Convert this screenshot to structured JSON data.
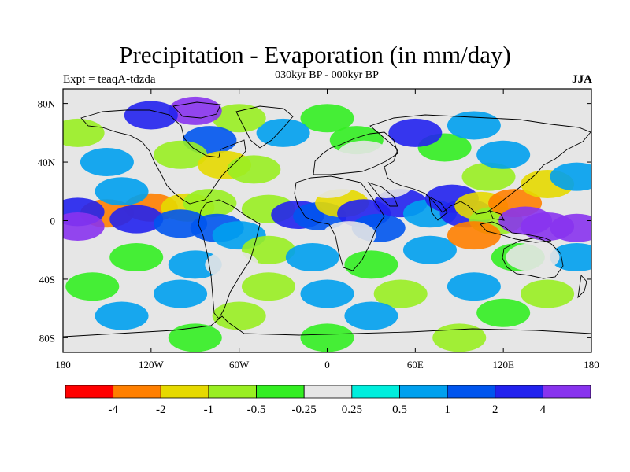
{
  "title": "Precipitation - Evaporation (in mm/day)",
  "subtitle": "030kyr BP - 000kyr BP",
  "left_label": "Expt = teaqA-tdzda",
  "right_label": "JJA",
  "colors": {
    "ocean_background": "#e6e6e6",
    "coastline": "#000000",
    "bins": [
      "#ff0000",
      "#ff7f00",
      "#e6d900",
      "#99ee22",
      "#33ee22",
      "#e6e6e6",
      "#00eedd",
      "#00a0ee",
      "#0055ee",
      "#2222ee",
      "#8833ee"
    ]
  },
  "map": {
    "projection": "cylindrical-equidistant",
    "lon_range": [
      -180,
      180
    ],
    "lat_range": [
      -90,
      90
    ],
    "lon_ticks": [
      {
        "value": -180,
        "label": "180"
      },
      {
        "value": -120,
        "label": "120W"
      },
      {
        "value": -60,
        "label": "60W"
      },
      {
        "value": 0,
        "label": "0"
      },
      {
        "value": 60,
        "label": "60E"
      },
      {
        "value": 120,
        "label": "120E"
      },
      {
        "value": 180,
        "label": "180"
      }
    ],
    "lat_ticks": [
      {
        "value": 80,
        "label": "80N"
      },
      {
        "value": 40,
        "label": "40N"
      },
      {
        "value": 0,
        "label": "0"
      },
      {
        "value": -40,
        "label": "40S"
      },
      {
        "value": -80,
        "label": "80S"
      }
    ]
  },
  "colorbar": {
    "levels": [
      -4,
      -2,
      -1,
      -0.5,
      -0.25,
      0.25,
      0.5,
      1,
      2,
      4
    ],
    "labels": [
      "-4",
      "-2",
      "-1",
      "-0.5",
      "-0.25",
      "0.25",
      "0.5",
      "1",
      "2",
      "4"
    ]
  },
  "fields": [
    {
      "lon": -150,
      "lat": 5,
      "value": -4
    },
    {
      "lon": -120,
      "lat": 9,
      "value": -4
    },
    {
      "lon": -95,
      "lat": 9,
      "value": -2
    },
    {
      "lon": -80,
      "lat": 12,
      "value": -1
    },
    {
      "lon": -170,
      "lat": 6,
      "value": 2
    },
    {
      "lon": -170,
      "lat": -4,
      "value": 4
    },
    {
      "lon": -130,
      "lat": 1,
      "value": 2
    },
    {
      "lon": -100,
      "lat": -2,
      "value": 1
    },
    {
      "lon": -75,
      "lat": -5,
      "value": 1
    },
    {
      "lon": -60,
      "lat": -10,
      "value": 0.5
    },
    {
      "lon": -40,
      "lat": 8,
      "value": -1
    },
    {
      "lon": -20,
      "lat": 4,
      "value": 2
    },
    {
      "lon": -5,
      "lat": 3,
      "value": 1
    },
    {
      "lon": 10,
      "lat": 12,
      "value": -2
    },
    {
      "lon": 25,
      "lat": 5,
      "value": 2
    },
    {
      "lon": 35,
      "lat": -5,
      "value": 1
    },
    {
      "lon": 50,
      "lat": 12,
      "value": 2
    },
    {
      "lon": 70,
      "lat": 5,
      "value": 0.5
    },
    {
      "lon": 85,
      "lat": 15,
      "value": 2
    },
    {
      "lon": 95,
      "lat": 5,
      "value": 2
    },
    {
      "lon": 105,
      "lat": 10,
      "value": -2
    },
    {
      "lon": 115,
      "lat": 0,
      "value": -1
    },
    {
      "lon": 128,
      "lat": 12,
      "value": -4
    },
    {
      "lon": 135,
      "lat": 0,
      "value": 4
    },
    {
      "lon": 150,
      "lat": -4,
      "value": 4
    },
    {
      "lon": 170,
      "lat": -5,
      "value": 4
    },
    {
      "lon": 150,
      "lat": 25,
      "value": -2
    },
    {
      "lon": 170,
      "lat": 30,
      "value": 0.5
    },
    {
      "lon": 110,
      "lat": 30,
      "value": -1
    },
    {
      "lon": 120,
      "lat": 45,
      "value": 0.5
    },
    {
      "lon": 80,
      "lat": 50,
      "value": -0.5
    },
    {
      "lon": 60,
      "lat": 60,
      "value": 2
    },
    {
      "lon": 100,
      "lat": 65,
      "value": 0.5
    },
    {
      "lon": 20,
      "lat": 55,
      "value": -0.5
    },
    {
      "lon": 0,
      "lat": 70,
      "value": -0.5
    },
    {
      "lon": -30,
      "lat": 60,
      "value": 0.5
    },
    {
      "lon": -60,
      "lat": 70,
      "value": -1
    },
    {
      "lon": -90,
      "lat": 75,
      "value": 4
    },
    {
      "lon": -120,
      "lat": 72,
      "value": 2
    },
    {
      "lon": -80,
      "lat": 55,
      "value": 1
    },
    {
      "lon": -100,
      "lat": 45,
      "value": -1
    },
    {
      "lon": -70,
      "lat": 38,
      "value": -2
    },
    {
      "lon": -50,
      "lat": 35,
      "value": -1
    },
    {
      "lon": -150,
      "lat": 40,
      "value": 0.5
    },
    {
      "lon": -170,
      "lat": 60,
      "value": -1
    },
    {
      "lon": -140,
      "lat": 20,
      "value": 0.5
    },
    {
      "lon": -40,
      "lat": -20,
      "value": -1
    },
    {
      "lon": -10,
      "lat": -25,
      "value": 0.5
    },
    {
      "lon": 30,
      "lat": -30,
      "value": -0.5
    },
    {
      "lon": 70,
      "lat": -20,
      "value": 0.5
    },
    {
      "lon": 100,
      "lat": -10,
      "value": -4
    },
    {
      "lon": 130,
      "lat": -25,
      "value": -0.5
    },
    {
      "lon": 170,
      "lat": -25,
      "value": 0.5
    },
    {
      "lon": -130,
      "lat": -25,
      "value": -0.5
    },
    {
      "lon": -90,
      "lat": -30,
      "value": 0.5
    },
    {
      "lon": -160,
      "lat": -45,
      "value": -0.5
    },
    {
      "lon": -100,
      "lat": -50,
      "value": 0.5
    },
    {
      "lon": -40,
      "lat": -45,
      "value": -1
    },
    {
      "lon": 0,
      "lat": -50,
      "value": 0.5
    },
    {
      "lon": 50,
      "lat": -50,
      "value": -1
    },
    {
      "lon": 100,
      "lat": -45,
      "value": 0.5
    },
    {
      "lon": 150,
      "lat": -50,
      "value": -1
    },
    {
      "lon": -140,
      "lat": -65,
      "value": 0.5
    },
    {
      "lon": -60,
      "lat": -65,
      "value": -1
    },
    {
      "lon": 30,
      "lat": -65,
      "value": 0.5
    },
    {
      "lon": 120,
      "lat": -63,
      "value": -0.5
    },
    {
      "lon": 0,
      "lat": -80,
      "value": -0.5
    },
    {
      "lon": 90,
      "lat": -80,
      "value": -1
    },
    {
      "lon": -90,
      "lat": -80,
      "value": -0.5
    },
    {
      "lon": 0,
      "lat": 25,
      "value": 0
    },
    {
      "lon": 40,
      "lat": 25,
      "value": 0
    },
    {
      "lon": 25,
      "lat": 45,
      "value": 0
    },
    {
      "lon": 15,
      "lat": -10,
      "value": 0
    },
    {
      "lon": 140,
      "lat": -25,
      "value": 0
    },
    {
      "lon": -65,
      "lat": -30,
      "value": 0
    }
  ]
}
